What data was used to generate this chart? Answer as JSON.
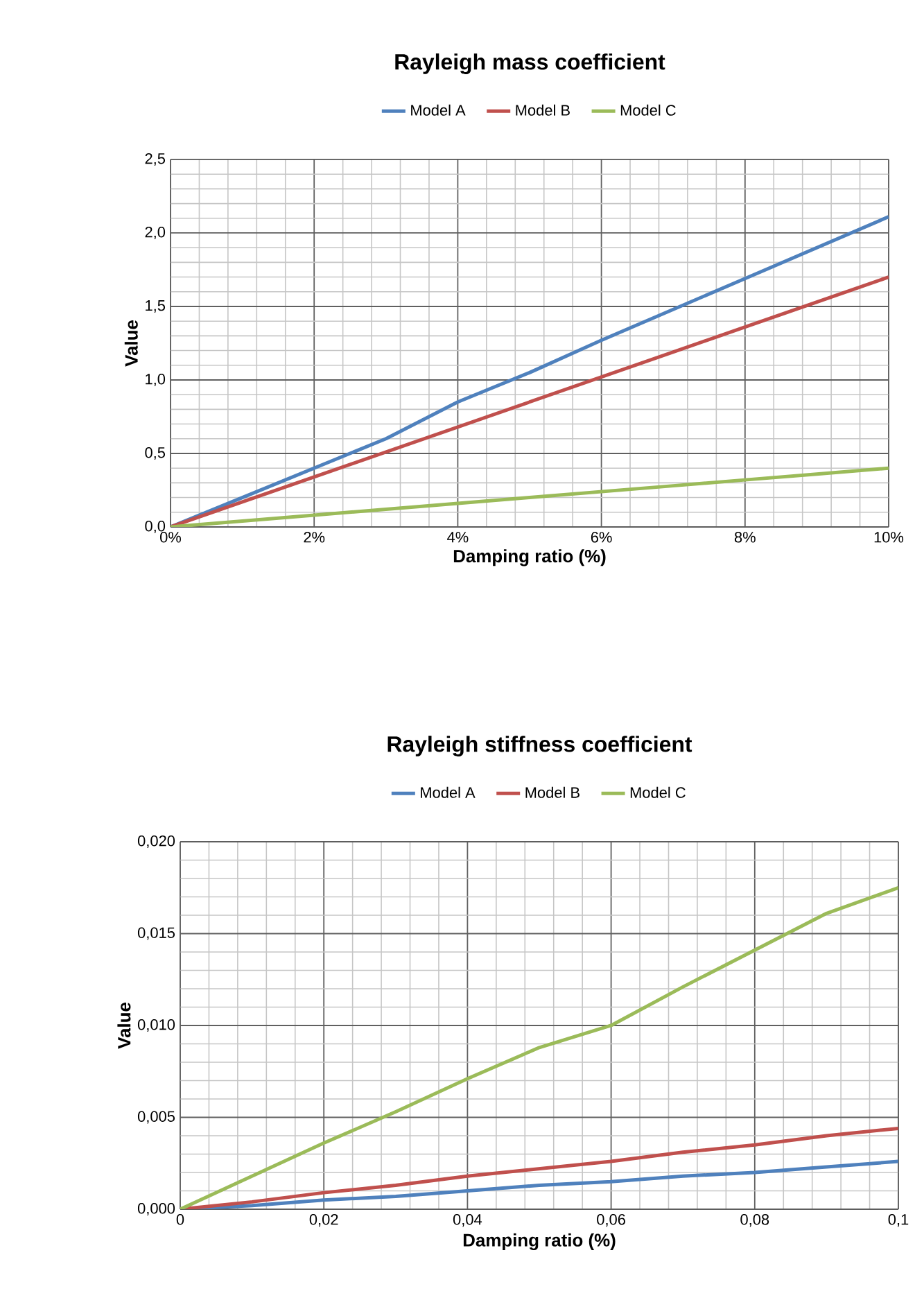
{
  "chart_data": [
    {
      "type": "line",
      "title": "Rayleigh mass coefficient",
      "xlabel": "Damping ratio (%)",
      "ylabel": "Value",
      "x": [
        0,
        0.01,
        0.02,
        0.03,
        0.04,
        0.05,
        0.06,
        0.07,
        0.08,
        0.09,
        0.1
      ],
      "series": [
        {
          "name": "Model A",
          "color": "#4f81bd",
          "values": [
            0,
            0.2,
            0.4,
            0.6,
            0.85,
            1.05,
            1.27,
            1.48,
            1.69,
            1.9,
            2.11
          ]
        },
        {
          "name": "Model B",
          "color": "#c0504d",
          "values": [
            0,
            0.17,
            0.34,
            0.51,
            0.68,
            0.85,
            1.02,
            1.19,
            1.36,
            1.53,
            1.7
          ]
        },
        {
          "name": "Model C",
          "color": "#9bbb59",
          "values": [
            0,
            0.04,
            0.08,
            0.12,
            0.16,
            0.2,
            0.24,
            0.28,
            0.32,
            0.36,
            0.4
          ]
        }
      ],
      "xlim": [
        0,
        0.1
      ],
      "ylim": [
        0,
        2.5
      ],
      "xticks": [
        {
          "value": 0,
          "label": "0%"
        },
        {
          "value": 0.02,
          "label": "2%"
        },
        {
          "value": 0.04,
          "label": "4%"
        },
        {
          "value": 0.06,
          "label": "6%"
        },
        {
          "value": 0.08,
          "label": "8%"
        },
        {
          "value": 0.1,
          "label": "10%"
        }
      ],
      "yticks": [
        {
          "value": 0,
          "label": "0,0"
        },
        {
          "value": 0.5,
          "label": "0,5"
        },
        {
          "value": 1,
          "label": "1,0"
        },
        {
          "value": 1.5,
          "label": "1,5"
        },
        {
          "value": 2,
          "label": "2,0"
        },
        {
          "value": 2.5,
          "label": "2,5"
        }
      ],
      "grid": true,
      "legend": "top"
    },
    {
      "type": "line",
      "title": "Rayleigh stiffness coefficient",
      "xlabel": "Damping ratio (%)",
      "ylabel": "Value",
      "x": [
        0,
        0.01,
        0.02,
        0.03,
        0.04,
        0.05,
        0.06,
        0.07,
        0.08,
        0.09,
        0.1
      ],
      "series": [
        {
          "name": "Model A",
          "color": "#4f81bd",
          "values": [
            0,
            0.0002,
            0.0005,
            0.0007,
            0.001,
            0.0013,
            0.0015,
            0.0018,
            0.002,
            0.0023,
            0.0026
          ]
        },
        {
          "name": "Model B",
          "color": "#c0504d",
          "values": [
            0,
            0.0004,
            0.0009,
            0.0013,
            0.0018,
            0.0022,
            0.0026,
            0.0031,
            0.0035,
            0.004,
            0.0044
          ]
        },
        {
          "name": "Model C",
          "color": "#9bbb59",
          "values": [
            0,
            0.0018,
            0.0036,
            0.0053,
            0.0071,
            0.0088,
            0.01,
            0.0121,
            0.0141,
            0.0161,
            0.0175
          ]
        }
      ],
      "xlim": [
        0,
        0.1
      ],
      "ylim": [
        0,
        0.02
      ],
      "xticks": [
        {
          "value": 0,
          "label": "0"
        },
        {
          "value": 0.02,
          "label": "0,02"
        },
        {
          "value": 0.04,
          "label": "0,04"
        },
        {
          "value": 0.06,
          "label": "0,06"
        },
        {
          "value": 0.08,
          "label": "0,08"
        },
        {
          "value": 0.1,
          "label": "0,1"
        }
      ],
      "yticks": [
        {
          "value": 0,
          "label": "0,000"
        },
        {
          "value": 0.005,
          "label": "0,005"
        },
        {
          "value": 0.01,
          "label": "0,010"
        },
        {
          "value": 0.015,
          "label": "0,015"
        },
        {
          "value": 0.02,
          "label": "0,020"
        }
      ],
      "grid": true,
      "legend": "top"
    }
  ]
}
